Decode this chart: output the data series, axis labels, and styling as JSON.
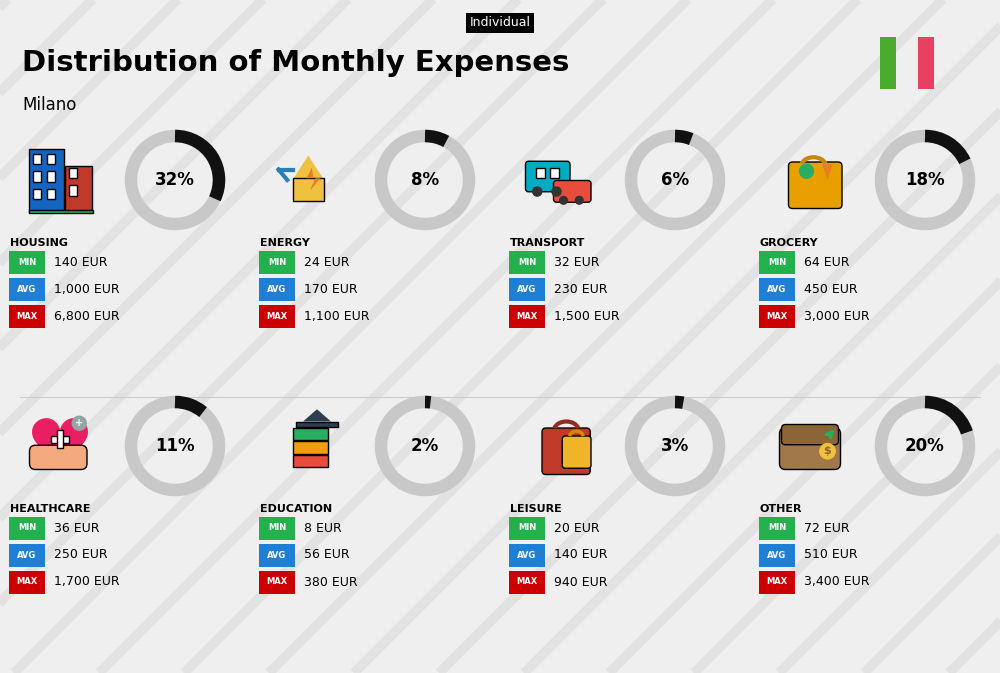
{
  "title": "Distribution of Monthly Expenses",
  "subtitle": "Individual",
  "city": "Milano",
  "bg_color": "#efefef",
  "stripe_color": "#e2e2e2",
  "categories": [
    {
      "name": "HOUSING",
      "pct": 32,
      "min": "140 EUR",
      "avg": "1,000 EUR",
      "max": "6,800 EUR",
      "row": 0,
      "col": 0
    },
    {
      "name": "ENERGY",
      "pct": 8,
      "min": "24 EUR",
      "avg": "170 EUR",
      "max": "1,100 EUR",
      "row": 0,
      "col": 1
    },
    {
      "name": "TRANSPORT",
      "pct": 6,
      "min": "32 EUR",
      "avg": "230 EUR",
      "max": "1,500 EUR",
      "row": 0,
      "col": 2
    },
    {
      "name": "GROCERY",
      "pct": 18,
      "min": "64 EUR",
      "avg": "450 EUR",
      "max": "3,000 EUR",
      "row": 0,
      "col": 3
    },
    {
      "name": "HEALTHCARE",
      "pct": 11,
      "min": "36 EUR",
      "avg": "250 EUR",
      "max": "1,700 EUR",
      "row": 1,
      "col": 0
    },
    {
      "name": "EDUCATION",
      "pct": 2,
      "min": "8 EUR",
      "avg": "56 EUR",
      "max": "380 EUR",
      "row": 1,
      "col": 1
    },
    {
      "name": "LEISURE",
      "pct": 3,
      "min": "20 EUR",
      "avg": "140 EUR",
      "max": "940 EUR",
      "row": 1,
      "col": 2
    },
    {
      "name": "OTHER",
      "pct": 20,
      "min": "72 EUR",
      "avg": "510 EUR",
      "max": "3,400 EUR",
      "row": 1,
      "col": 3
    }
  ],
  "min_color": "#22b14c",
  "avg_color": "#1e7fd4",
  "max_color": "#cc0000",
  "italy_green": "#4aab2c",
  "italy_red": "#e84060",
  "ring_bg_color": "#c8c8c8",
  "ring_fg_color": "#111111",
  "ring_lw": 9
}
